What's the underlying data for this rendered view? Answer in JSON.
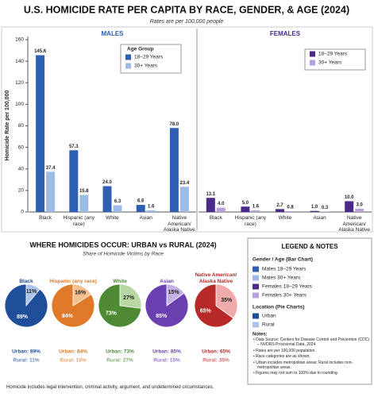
{
  "header": {
    "title": "U.S. HOMICIDE RATE PER CAPITA BY RACE, GENDER, & AGE (2024)",
    "subtitle": "Rates are per 100,000 people"
  },
  "chart_data": [
    {
      "type": "bar",
      "ylabel": "Homicide Rate per 100,000",
      "ylim": [
        0,
        160
      ],
      "yticks": [
        0,
        20,
        40,
        60,
        80,
        100,
        120,
        140,
        160
      ],
      "categories": [
        "Black",
        "Hispanic (any race)",
        "White",
        "Asian",
        "Native American/ Alaska Native"
      ],
      "panels": [
        {
          "title": "MALES",
          "title_color": "#2f5fb3",
          "legend_title": "Age Group",
          "series": [
            {
              "name": "18–29 Years",
              "color": "#2f5fb3",
              "values": [
                145.6,
                57.3,
                24,
                6.6,
                78
              ],
              "value_labels": [
                "145.6",
                "57.3",
                "24.0",
                "6.6",
                "78.0"
              ]
            },
            {
              "name": "30+ Years",
              "color": "#9dbbe4",
              "values": [
                37.4,
                15.8,
                6.3,
                1.6,
                23.4
              ],
              "value_labels": [
                "37.4",
                "15.8",
                "6.3",
                "1.6",
                "23.4"
              ]
            }
          ]
        },
        {
          "title": "FEMALES",
          "title_color": "#4b2a8a",
          "series": [
            {
              "name": "18–29 Years",
              "color": "#4b2a8a",
              "values": [
                13.1,
                5,
                2.7,
                1,
                10
              ],
              "value_labels": [
                "13.1",
                "5.0",
                "2.7",
                "1.0",
                "10.0"
              ]
            },
            {
              "name": "30+ Years",
              "color": "#b6a2d9",
              "values": [
                4,
                1.6,
                0.8,
                0.3,
                3
              ],
              "value_labels": [
                "4.0",
                "1.6",
                "0.8",
                "0.3",
                "3.0"
              ]
            }
          ]
        }
      ]
    },
    {
      "type": "pie",
      "title": "WHERE HOMICIDES OCCUR: URBAN vs RURAL (2024)",
      "subtitle": "Share of Homicide Victims by Race",
      "pies": [
        {
          "title": "Black",
          "title_color": "#1f4e9a",
          "colors": [
            "#1f4e9a",
            "#a9c3ea"
          ],
          "values": [
            89,
            11
          ],
          "value_labels": [
            "89%",
            "11%"
          ],
          "summary_labels": [
            "Urban: 89%",
            "Rural: 11%"
          ]
        },
        {
          "title": "Hispanic (any race)",
          "title_color": "#e07a2a",
          "colors": [
            "#e07a2a",
            "#f6c08e"
          ],
          "values": [
            84,
            16
          ],
          "value_labels": [
            "84%",
            "16%"
          ],
          "summary_labels": [
            "Urban: 84%",
            "Rural: 16%"
          ]
        },
        {
          "title": "White",
          "title_color": "#4e8a33",
          "colors": [
            "#4e8a33",
            "#b8d7a3"
          ],
          "values": [
            73,
            27
          ],
          "value_labels": [
            "73%",
            "27%"
          ],
          "summary_labels": [
            "Urban: 73%",
            "Rural: 27%"
          ]
        },
        {
          "title": "Asian",
          "title_color": "#6a3fb0",
          "colors": [
            "#6a3fb0",
            "#c3b1e6"
          ],
          "values": [
            85,
            15
          ],
          "value_labels": [
            "85%",
            "15%"
          ],
          "summary_labels": [
            "Urban: 85%",
            "Rural: 15%"
          ]
        },
        {
          "title": "Native American/ Alaska Native",
          "title_color": "#b82a2a",
          "colors": [
            "#b82a2a",
            "#f0aaaa"
          ],
          "values": [
            65,
            35
          ],
          "value_labels": [
            "65%",
            "35%"
          ],
          "summary_labels": [
            "Urban: 65%",
            "Rural: 35%"
          ]
        }
      ]
    }
  ],
  "legend_notes": {
    "title": "LEGEND & NOTES",
    "bar_heading": "Gender / Age (Bar Chart)",
    "bar_items": [
      {
        "label": "Males 18–29 Years",
        "color": "#2f5fb3"
      },
      {
        "label": "Males 30+ Years",
        "color": "#9dbbe4"
      },
      {
        "label": "Females 18–29 Years",
        "color": "#4b2a8a"
      },
      {
        "label": "Females 30+ Years",
        "color": "#b6a2d9"
      }
    ],
    "pie_heading": "Location (Pie Charts)",
    "pie_items": [
      {
        "label": "Urban",
        "color": "#1f4e9a"
      },
      {
        "label": "Rural",
        "color": "#a9c3ea"
      }
    ],
    "notes_heading": "Notes:",
    "notes": [
      "Data Source: Centers for Disease Control and Prevention (CDC) – NVDRS Provisional Data, 2024",
      "Rates are per 100,000 population.",
      "Race categories are as shown.",
      "Urban includes metropolitan areas; Rural includes non-metropolitan areas.",
      "Figures may not sum to 100% due to rounding."
    ]
  },
  "footer": "Homicide includes legal intervention, criminal activity, argument, and undetermined circumstances."
}
